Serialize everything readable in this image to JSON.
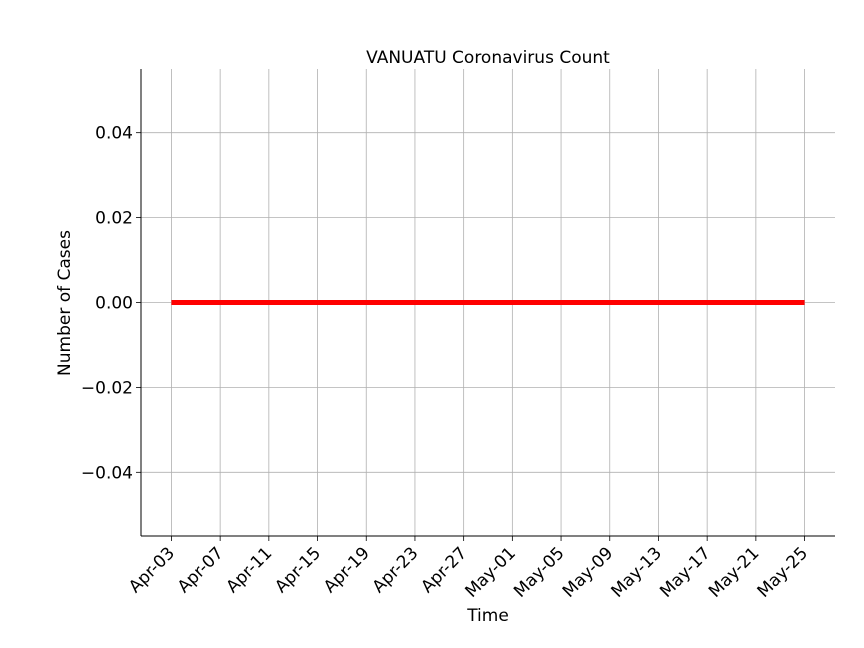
{
  "chart_data": {
    "type": "line",
    "title": "VANUATU Coronavirus Count",
    "xlabel": "Time",
    "ylabel": "Number of Cases",
    "x_ticks": [
      "Apr-03",
      "Apr-07",
      "Apr-11",
      "Apr-15",
      "Apr-19",
      "Apr-23",
      "Apr-27",
      "May-01",
      "May-05",
      "May-09",
      "May-13",
      "May-17",
      "May-21",
      "May-25"
    ],
    "y_ticks": [
      "0.04",
      "0.02",
      "0.00",
      "−0.02",
      "−0.04"
    ],
    "y_tick_values": [
      0.04,
      0.02,
      0.0,
      -0.02,
      -0.04
    ],
    "ylim": [
      -0.055,
      0.055
    ],
    "x_range_days": [
      -2.5,
      54.5
    ],
    "grid": true,
    "series": [
      {
        "color": "#ff0000",
        "x_start": "Apr-03",
        "x_end": "May-25",
        "values": [
          0,
          0
        ]
      }
    ]
  }
}
